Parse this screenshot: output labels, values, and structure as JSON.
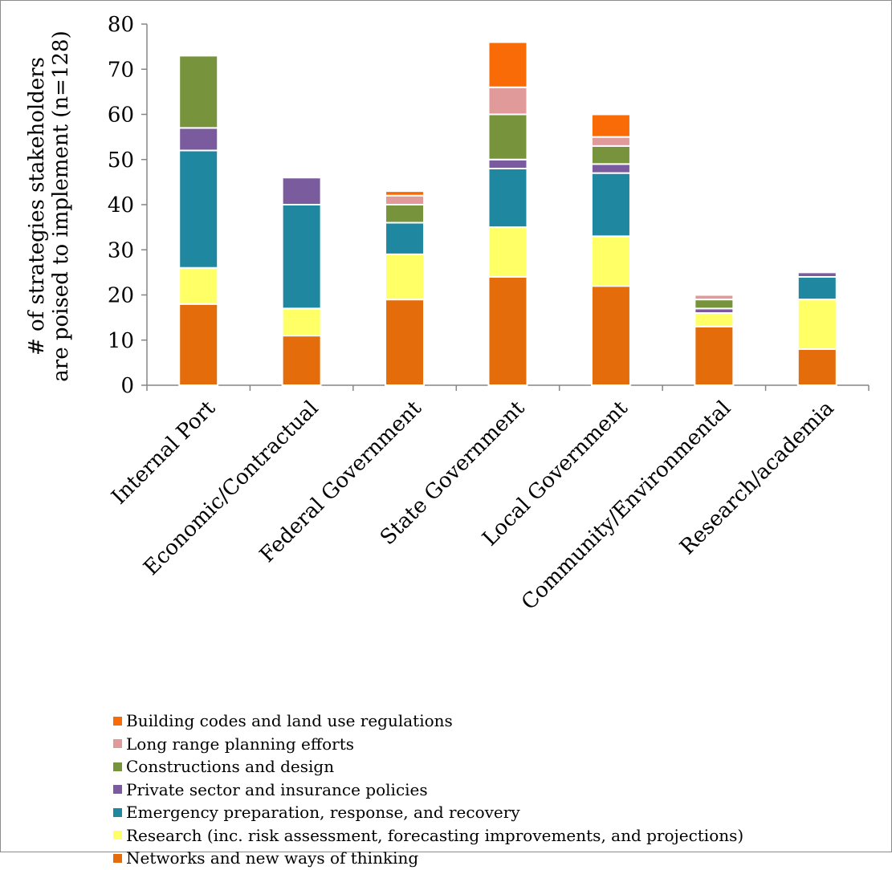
{
  "chart_data": {
    "type": "bar",
    "stacked": true,
    "ylabel_line1": "# of strategies stakeholders",
    "ylabel_line2": "are poised to implement (n=128)",
    "ylim": [
      0,
      80
    ],
    "yticks": [
      0,
      10,
      20,
      30,
      40,
      50,
      60,
      70,
      80
    ],
    "categories": [
      "Internal Port",
      "Economic/Contractual",
      "Federal Government",
      "State Government",
      "Local Government",
      "Community/Environmental",
      "Research/academia"
    ],
    "series": [
      {
        "name": "Networks and new ways of thinking",
        "color": "#E46C0A",
        "values": [
          18,
          11,
          19,
          24,
          22,
          13,
          8
        ]
      },
      {
        "name": "Research (inc. risk assessment, forecasting improvements, and projections)",
        "color": "#FFFF66",
        "values": [
          8,
          6,
          10,
          11,
          11,
          3,
          11
        ]
      },
      {
        "name": "Emergency preparation, response, and recovery",
        "color": "#1F88A0",
        "values": [
          26,
          23,
          7,
          13,
          14,
          0,
          5
        ]
      },
      {
        "name": "Private sector and insurance policies",
        "color": "#7A5C9E",
        "values": [
          5,
          6,
          0,
          2,
          2,
          1,
          1
        ]
      },
      {
        "name": "Constructions and design",
        "color": "#77933C",
        "values": [
          16,
          0,
          4,
          10,
          4,
          2,
          0
        ]
      },
      {
        "name": "Long range planning efforts",
        "color": "#E09A9A",
        "values": [
          0,
          0,
          2,
          6,
          2,
          1,
          0
        ]
      },
      {
        "name": "Building codes and land use regulations",
        "color": "#F96B07",
        "values": [
          0,
          0,
          1,
          10,
          5,
          0,
          0
        ]
      }
    ],
    "legend_position": "bottom",
    "grid": false
  }
}
